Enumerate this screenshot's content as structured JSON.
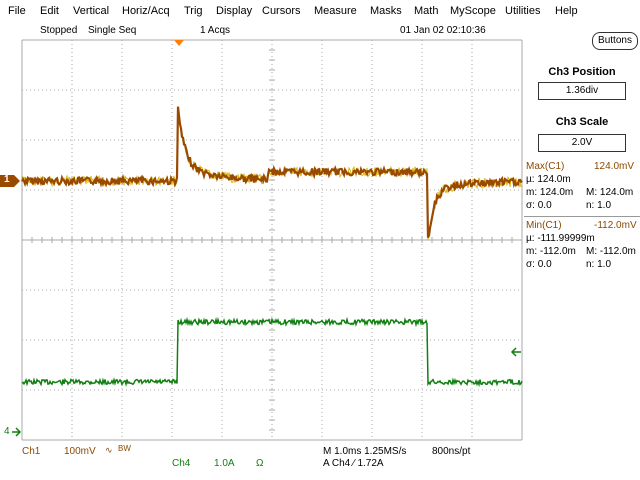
{
  "menu": [
    "File",
    "Edit",
    "Vertical",
    "Horiz/Acq",
    "Trig",
    "Display",
    "Cursors",
    "Measure",
    "Masks",
    "Math",
    "MyScope",
    "Utilities",
    "Help"
  ],
  "status": {
    "state": "Stopped",
    "mode": "Single Seq",
    "acqs": "1 Acqs",
    "datetime": "01 Jan 02 02:10:36"
  },
  "panel": {
    "buttons_label": "Buttons",
    "position_title": "Ch3 Position",
    "position_value": "1.36div",
    "scale_title": "Ch3 Scale",
    "scale_value": "2.0V",
    "max": {
      "label": "Max(C1)",
      "value": "124.0mV",
      "mu": "µ: 124.0m",
      "m": "m: 124.0m",
      "M": "M: 124.0m",
      "sigma": "σ: 0.0",
      "n": "n: 1.0"
    },
    "min": {
      "label": "Min(C1)",
      "value": "-112.0mV",
      "mu": "µ: -111.99999m",
      "m": "m: -112.0m",
      "M": "M: -112.0m",
      "sigma": "σ: 0.0",
      "n": "n: 1.0"
    }
  },
  "markers": {
    "ch1": "1",
    "ch4": "4"
  },
  "bottom": {
    "ch1_label": "Ch1",
    "ch1_scale": "100mV",
    "ch1_bw": "BW",
    "ch4_label": "Ch4",
    "ch4_scale": "1.0A",
    "ch4_unit": "Ω",
    "timebase": "M 1.0ms 1.25MS/s",
    "pt": "800ns/pt",
    "trigger": "A  Ch4  ⁄  1.72A"
  },
  "colors": {
    "ch1": "#9a4a00",
    "ch1_hi": "#d8b400",
    "ch4": "#108010",
    "grid": "#aaaaaa",
    "trigger": "#ff8000"
  }
}
